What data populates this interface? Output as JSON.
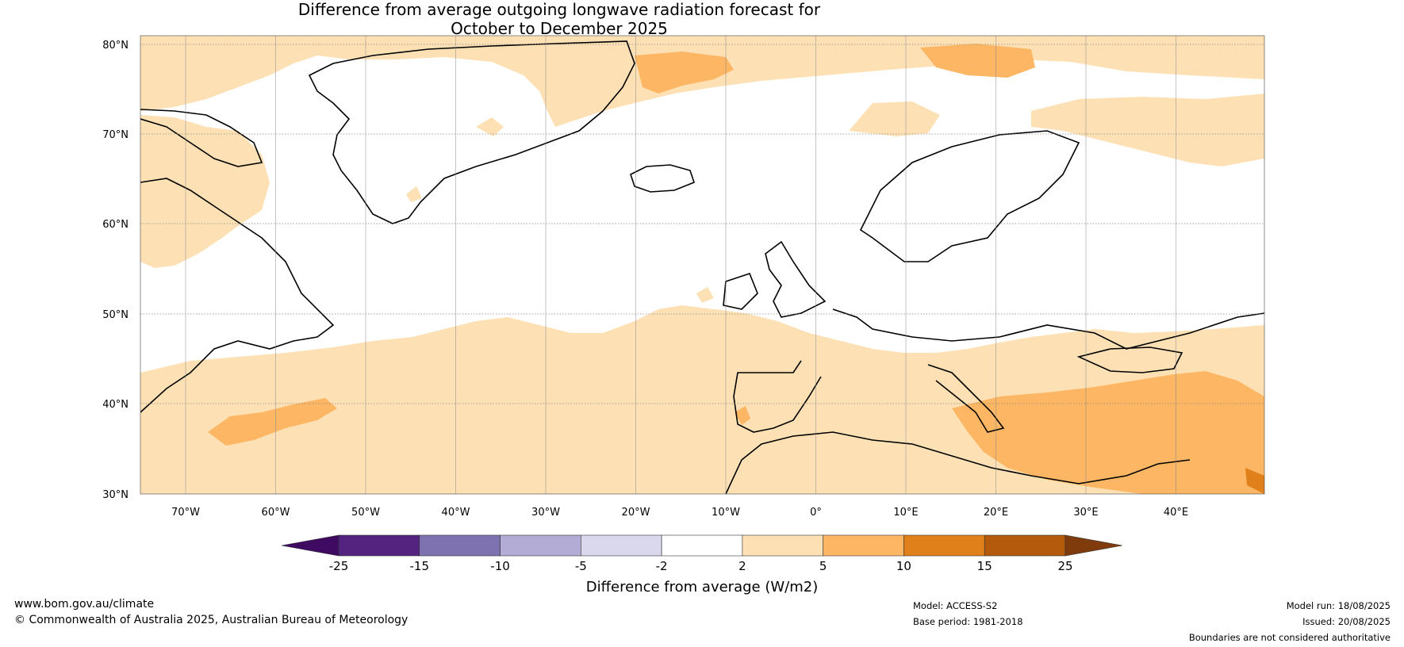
{
  "title": {
    "line1": "Difference from average outgoing longwave radiation forecast for",
    "line2": "October to December 2025"
  },
  "map": {
    "lat_labels": [
      "80°N",
      "70°N",
      "60°N",
      "50°N",
      "40°N",
      "30°N"
    ],
    "lon_labels": [
      "70°W",
      "60°W",
      "50°W",
      "40°W",
      "30°W",
      "20°W",
      "10°W",
      "0°",
      "10°E",
      "20°E",
      "30°E",
      "40°E"
    ]
  },
  "colorbar": {
    "title": "Difference from average (W/m2)",
    "ticks": [
      "-25",
      "-15",
      "-10",
      "-5",
      "-2",
      "2",
      "5",
      "10",
      "15",
      "25"
    ],
    "colors": [
      "#3f0a62",
      "#53237f",
      "#7e72b0",
      "#b3acd4",
      "#d9d8ec",
      "#ffffff",
      "#fde1b5",
      "#fdb663",
      "#e0801a",
      "#b35a0d",
      "#7f3b0c"
    ]
  },
  "footer": {
    "website": "www.bom.gov.au/climate",
    "copyright": "© Commonwealth of Australia 2025, Australian Bureau of Meteorology",
    "model": "Model: ACCESS-S2",
    "base_period": "Base period: 1981-2018",
    "model_run": "Model run: 18/08/2025",
    "issued": "Issued: 20/08/2025",
    "disclaimer": "Boundaries are not considered authoritative"
  }
}
